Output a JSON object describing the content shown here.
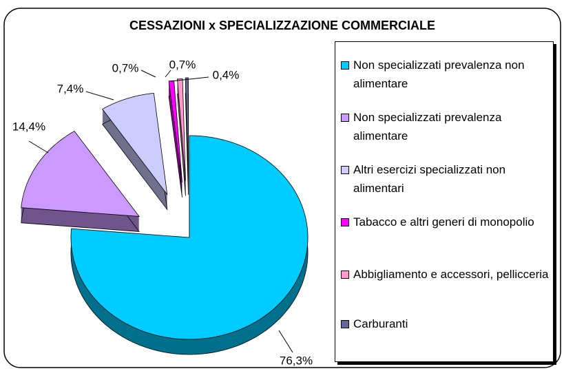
{
  "chart_data": {
    "type": "pie",
    "title": "CESSAZIONI x SPECIALIZZAZIONE COMMERCIALE",
    "categories": [
      "Non specializzati prevalenza non alimentare",
      "Non specializzati prevalenza alimentare",
      "Altri esercizi specializzati non alimentari",
      "Tabacco e altri generi di monopolio",
      "Abbigliamento e accessori, pellicceria",
      "Carburanti"
    ],
    "values": [
      76.3,
      14.4,
      7.4,
      0.7,
      0.7,
      0.4
    ],
    "value_labels": [
      "76,3%",
      "14,4%",
      "7,4%",
      "0,7%",
      "0,7%",
      "0,4%"
    ],
    "colors": [
      "#00ccff",
      "#cc99ff",
      "#ccccff",
      "#ff00ff",
      "#ff99cc",
      "#666699"
    ],
    "legend": "right"
  }
}
